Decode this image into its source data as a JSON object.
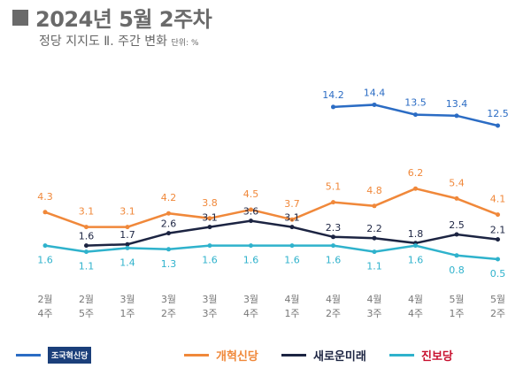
{
  "header": {
    "title": "2024년 5월 2주차",
    "subtitle": "정당 지지도 Ⅱ. 주간 변화",
    "unit": "단위: %"
  },
  "chart_data": {
    "type": "line",
    "title": "2024년 5월 2주차 정당 지지도 Ⅱ. 주간 변화",
    "ylabel": "단위: %",
    "categories": [
      [
        "2월",
        "4주"
      ],
      [
        "2월",
        "5주"
      ],
      [
        "3월",
        "1주"
      ],
      [
        "3월",
        "2주"
      ],
      [
        "3월",
        "3주"
      ],
      [
        "3월",
        "4주"
      ],
      [
        "4월",
        "1주"
      ],
      [
        "4월",
        "2주"
      ],
      [
        "4월",
        "3주"
      ],
      [
        "4월",
        "4주"
      ],
      [
        "5월",
        "1주"
      ],
      [
        "5월",
        "2주"
      ]
    ],
    "series": [
      {
        "name": "조국혁신당",
        "color": "#2b6cc4",
        "label_pos": "above",
        "values": [
          null,
          null,
          null,
          null,
          null,
          null,
          null,
          14.2,
          14.4,
          13.5,
          13.4,
          12.5
        ]
      },
      {
        "name": "개혁신당",
        "color": "#f0883a",
        "label_pos": "above",
        "values": [
          4.3,
          3.1,
          3.1,
          4.2,
          3.8,
          4.5,
          3.7,
          5.1,
          4.8,
          6.2,
          5.4,
          4.1
        ]
      },
      {
        "name": "새로운미래",
        "color": "#1c2442",
        "label_pos": "above",
        "values": [
          null,
          1.6,
          1.7,
          2.6,
          3.1,
          3.6,
          3.1,
          2.3,
          2.2,
          1.8,
          2.5,
          2.1
        ]
      },
      {
        "name": "진보당",
        "color": "#2fb2cc",
        "label_pos": "below",
        "values": [
          1.6,
          1.1,
          1.4,
          1.3,
          1.6,
          1.6,
          1.6,
          1.6,
          1.1,
          1.6,
          0.8,
          0.5
        ]
      }
    ],
    "axis_break": true,
    "grid": false,
    "legend": "bottom"
  },
  "legend": [
    {
      "name": "조국혁신당",
      "color": "#2b6cc4"
    },
    {
      "name": "개혁신당",
      "color": "#f0883a"
    },
    {
      "name": "새로운미래",
      "color": "#1c2442"
    },
    {
      "name": "진보당",
      "color": "#2fb2cc"
    }
  ]
}
